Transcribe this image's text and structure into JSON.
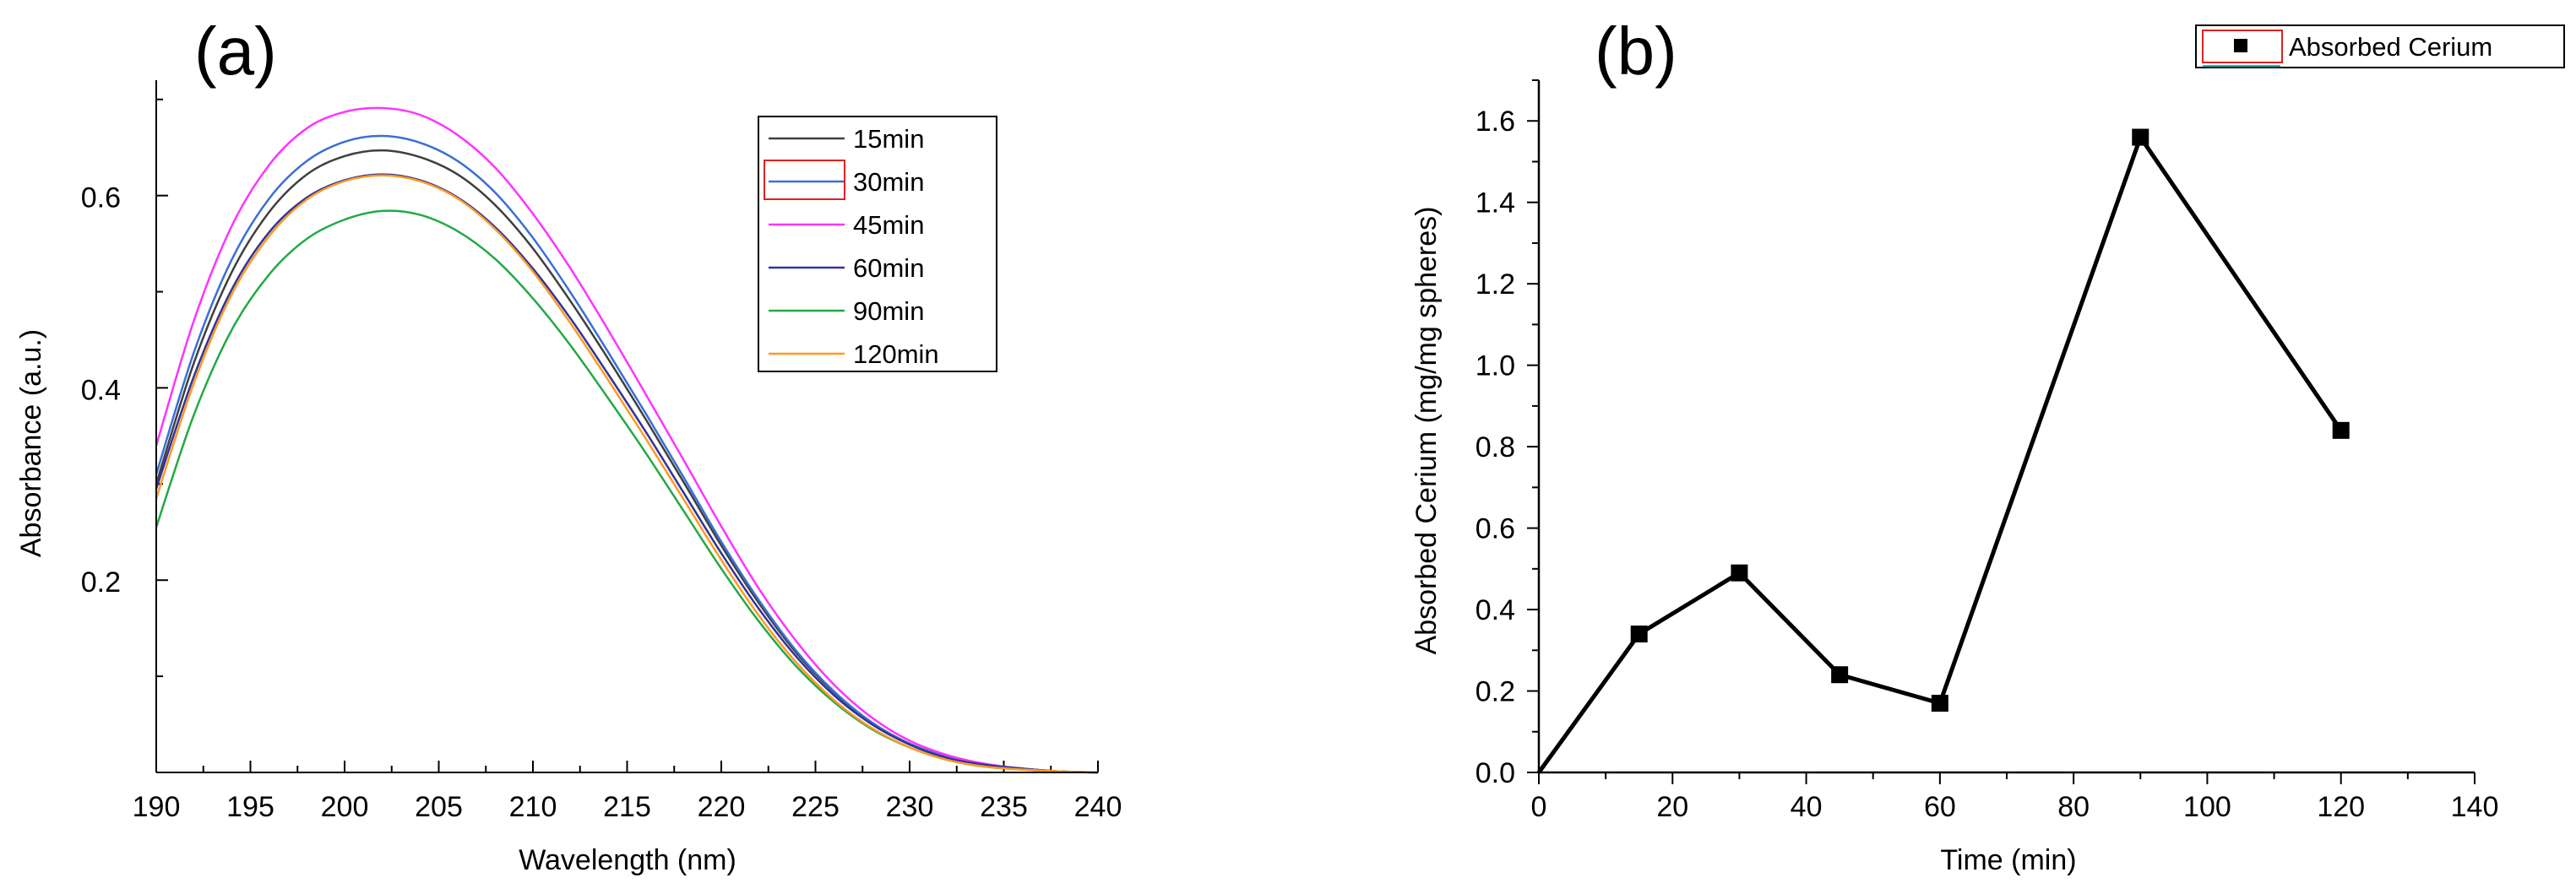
{
  "chart_data": [
    {
      "panel": "(a)",
      "type": "line",
      "xlabel": "Wavelength (nm)",
      "ylabel": "Absorbance (a.u.)",
      "xlim": [
        190,
        240
      ],
      "ylim": [
        0.0,
        0.72
      ],
      "xticks": [
        190,
        195,
        200,
        205,
        210,
        215,
        220,
        225,
        230,
        235,
        240
      ],
      "xtick_labels": [
        "190",
        "195",
        "200",
        "205",
        "210",
        "215",
        "220",
        "225",
        "230",
        "235",
        "240"
      ],
      "yticks": [
        0.2,
        0.4,
        0.6
      ],
      "ytick_labels": [
        "0.2",
        "0.4",
        "0.6"
      ],
      "legend": {
        "position": "top-right",
        "entries": [
          "15min",
          "30min",
          "45min",
          "60min",
          "90min",
          "120min"
        ]
      },
      "x": [
        190,
        192,
        194,
        196,
        198,
        200,
        202,
        204,
        206,
        208,
        210,
        212,
        214,
        216,
        218,
        220,
        222,
        224,
        226,
        228,
        230,
        232,
        234,
        236,
        238,
        240
      ],
      "series": [
        {
          "name": "15min",
          "color": "#404040",
          "values": [
            0.3,
            0.426,
            0.52,
            0.583,
            0.622,
            0.641,
            0.647,
            0.64,
            0.622,
            0.59,
            0.545,
            0.49,
            0.43,
            0.367,
            0.302,
            0.236,
            0.176,
            0.124,
            0.083,
            0.051,
            0.03,
            0.016,
            0.008,
            0.004,
            0.001,
            0.0
          ]
        },
        {
          "name": "30min",
          "color": "#3a6fd8",
          "values": [
            0.31,
            0.437,
            0.533,
            0.597,
            0.636,
            0.656,
            0.662,
            0.655,
            0.636,
            0.603,
            0.556,
            0.499,
            0.437,
            0.373,
            0.307,
            0.24,
            0.179,
            0.126,
            0.084,
            0.052,
            0.03,
            0.016,
            0.008,
            0.004,
            0.001,
            0.0
          ]
        },
        {
          "name": "45min",
          "color": "#ff33ff",
          "values": [
            0.34,
            0.47,
            0.568,
            0.632,
            0.67,
            0.687,
            0.691,
            0.684,
            0.663,
            0.629,
            0.581,
            0.524,
            0.46,
            0.393,
            0.325,
            0.256,
            0.191,
            0.136,
            0.091,
            0.057,
            0.033,
            0.018,
            0.009,
            0.004,
            0.001,
            0.0
          ]
        },
        {
          "name": "60min",
          "color": "#33339a",
          "values": [
            0.295,
            0.412,
            0.502,
            0.562,
            0.598,
            0.616,
            0.622,
            0.616,
            0.598,
            0.567,
            0.524,
            0.472,
            0.414,
            0.354,
            0.291,
            0.228,
            0.17,
            0.12,
            0.08,
            0.05,
            0.029,
            0.015,
            0.008,
            0.004,
            0.001,
            0.0
          ]
        },
        {
          "name": "90min",
          "color": "#22aa44",
          "values": [
            0.255,
            0.372,
            0.46,
            0.518,
            0.555,
            0.575,
            0.584,
            0.58,
            0.563,
            0.534,
            0.493,
            0.444,
            0.389,
            0.332,
            0.272,
            0.212,
            0.157,
            0.11,
            0.073,
            0.045,
            0.026,
            0.013,
            0.006,
            0.003,
            0.001,
            0.0
          ]
        },
        {
          "name": "120min",
          "color": "#ff9922",
          "values": [
            0.285,
            0.405,
            0.497,
            0.558,
            0.596,
            0.615,
            0.621,
            0.615,
            0.597,
            0.565,
            0.521,
            0.467,
            0.408,
            0.347,
            0.284,
            0.221,
            0.163,
            0.114,
            0.075,
            0.046,
            0.026,
            0.013,
            0.006,
            0.003,
            0.001,
            0.0
          ]
        }
      ]
    },
    {
      "panel": "(b)",
      "type": "line",
      "xlabel": "Time (min)",
      "ylabel": "Absorbed Cerium (mg/mg spheres)",
      "xlim": [
        0,
        140
      ],
      "ylim": [
        0.0,
        1.7
      ],
      "xticks": [
        0,
        20,
        40,
        60,
        80,
        100,
        120,
        140
      ],
      "xtick_labels": [
        "0",
        "20",
        "40",
        "60",
        "80",
        "100",
        "120",
        "140"
      ],
      "yticks": [
        0.0,
        0.2,
        0.4,
        0.6,
        0.8,
        1.0,
        1.2,
        1.4,
        1.6
      ],
      "ytick_labels": [
        "0.0",
        "0.2",
        "0.4",
        "0.6",
        "0.8",
        "1.0",
        "1.2",
        "1.4",
        "1.6"
      ],
      "legend": {
        "position": "top-right",
        "entries": [
          "Absorbed Cerium"
        ]
      },
      "series": [
        {
          "name": "Absorbed Cerium",
          "color": "#000000",
          "marker": "square",
          "x": [
            0,
            15,
            30,
            45,
            60,
            90,
            120
          ],
          "values": [
            0.0,
            0.34,
            0.49,
            0.24,
            0.17,
            1.56,
            0.84
          ]
        }
      ]
    }
  ]
}
